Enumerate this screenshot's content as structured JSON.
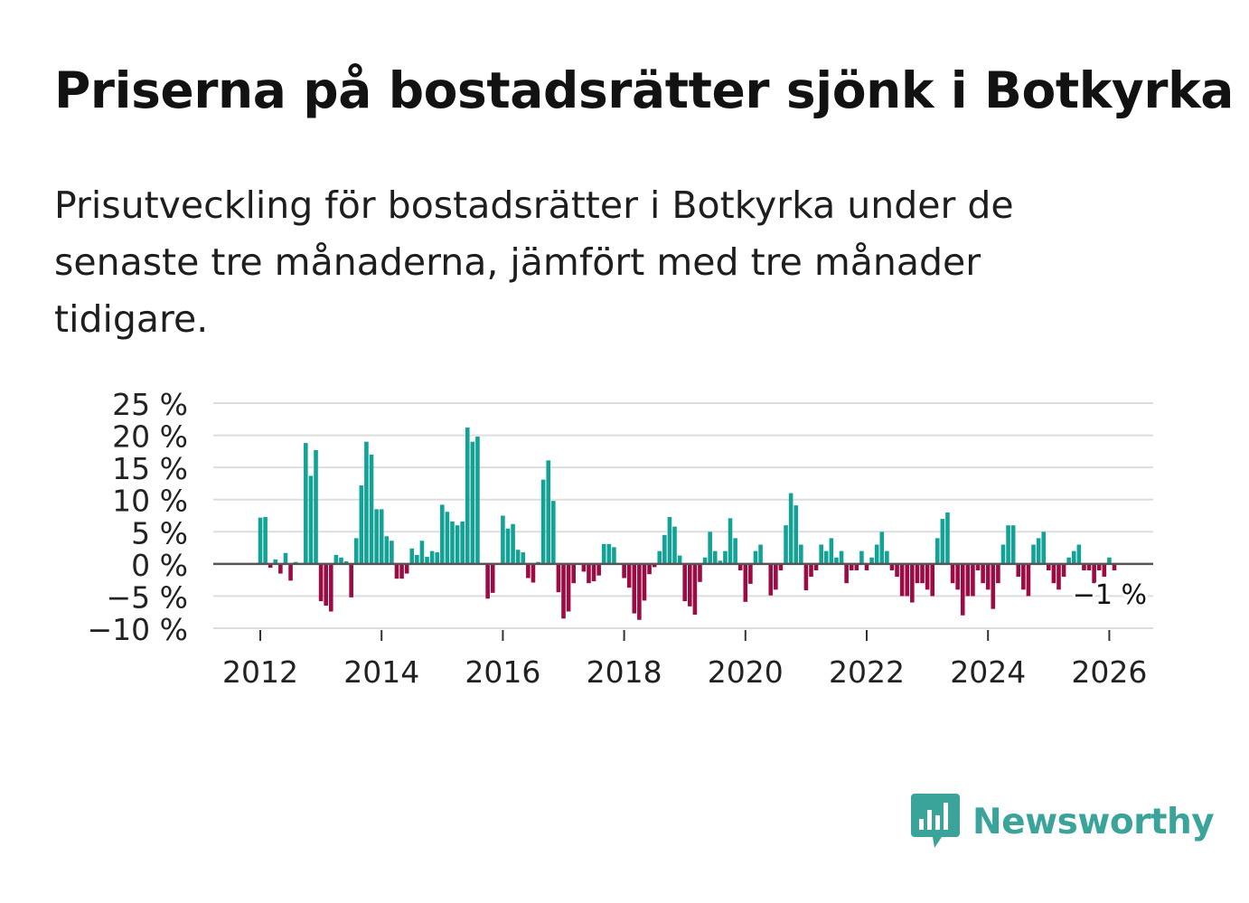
{
  "title": "Priserna på bostadsrätter sjönk i Botkyrka",
  "subtitle": "Prisutveckling för bostadsrätter i Botkyrka under de senaste tre månaderna, jämfört med tre månader tidigare.",
  "brand": {
    "name": "Newsworthy",
    "icon": "newsworthy-logo-icon",
    "color": "#3aa39a"
  },
  "colors": {
    "positive": "#12a396",
    "negative": "#9c0b43",
    "grid": "#dddddd",
    "zero": "#555555"
  },
  "chart_data": {
    "type": "bar",
    "title": "Priserna på bostadsrätter sjönk i Botkyrka",
    "xlabel": "",
    "ylabel": "",
    "unit": "%",
    "ylim": [
      -10,
      25
    ],
    "y_ticks": [
      25,
      20,
      15,
      10,
      5,
      0,
      -5,
      -10
    ],
    "y_tick_labels": [
      "25 %",
      "20 %",
      "15 %",
      "10 %",
      "5 %",
      "0 %",
      "−5 %",
      "−10 %"
    ],
    "x_ticks": [
      2012,
      2014,
      2016,
      2018,
      2020,
      2022,
      2024,
      2026
    ],
    "x_start": 2012.0,
    "x_step_months": 1,
    "last_value_label": "−1 %",
    "values": [
      7.2,
      7.3,
      -0.6,
      0.7,
      -1.5,
      1.7,
      -2.6,
      0.3,
      0.0,
      18.8,
      13.7,
      17.7,
      -5.8,
      -6.5,
      -7.4,
      1.4,
      1.0,
      0.4,
      -5.2,
      4.0,
      12.2,
      19.0,
      17.0,
      8.5,
      8.5,
      4.3,
      3.6,
      -2.3,
      -2.3,
      -1.5,
      2.4,
      1.4,
      3.6,
      1.1,
      2.0,
      1.8,
      9.2,
      8.1,
      6.6,
      6.0,
      6.6,
      21.2,
      19.0,
      19.8,
      0.0,
      -5.4,
      -4.5,
      0.0,
      7.5,
      5.5,
      6.2,
      2.2,
      1.8,
      -2.2,
      -2.9,
      0.3,
      13.1,
      16.1,
      9.8,
      -4.4,
      -8.5,
      -7.4,
      -3.0,
      0.0,
      -1.2,
      -3.0,
      -2.7,
      -1.8,
      3.1,
      3.1,
      2.6,
      0.0,
      -2.2,
      -3.7,
      -7.7,
      -8.7,
      -5.7,
      -1.6,
      -0.5,
      2.0,
      4.5,
      7.3,
      5.8,
      1.3,
      -5.8,
      -6.6,
      -7.9,
      -2.8,
      1.0,
      5.0,
      2.0,
      0.5,
      2.0,
      7.1,
      4.0,
      -1.0,
      -5.9,
      -3.1,
      2.0,
      3.0,
      0.0,
      -4.9,
      -4.0,
      -1.0,
      6.0,
      11.0,
      9.1,
      3.0,
      -4.1,
      -2.0,
      -1.0,
      3.0,
      2.0,
      4.0,
      1.0,
      2.0,
      -3.0,
      -1.0,
      -1.0,
      2.0,
      -1.0,
      1.0,
      3.0,
      5.0,
      2.0,
      -1.0,
      -2.0,
      -5.0,
      -5.0,
      -6.0,
      -3.0,
      -3.0,
      -4.0,
      -5.0,
      4.0,
      7.0,
      8.0,
      -3.0,
      -4.0,
      -8.0,
      -5.0,
      -5.0,
      -1.0,
      -3.0,
      -4.0,
      -7.0,
      -3.0,
      3.0,
      6.0,
      6.0,
      -2.0,
      -4.0,
      -5.0,
      3.0,
      4.0,
      5.0,
      -1.0,
      -3.0,
      -4.0,
      -2.0,
      1.0,
      2.0,
      3.0,
      -1.0,
      -1.0,
      -3.0,
      -1.0,
      -2.0,
      1.0,
      -1.0
    ]
  }
}
